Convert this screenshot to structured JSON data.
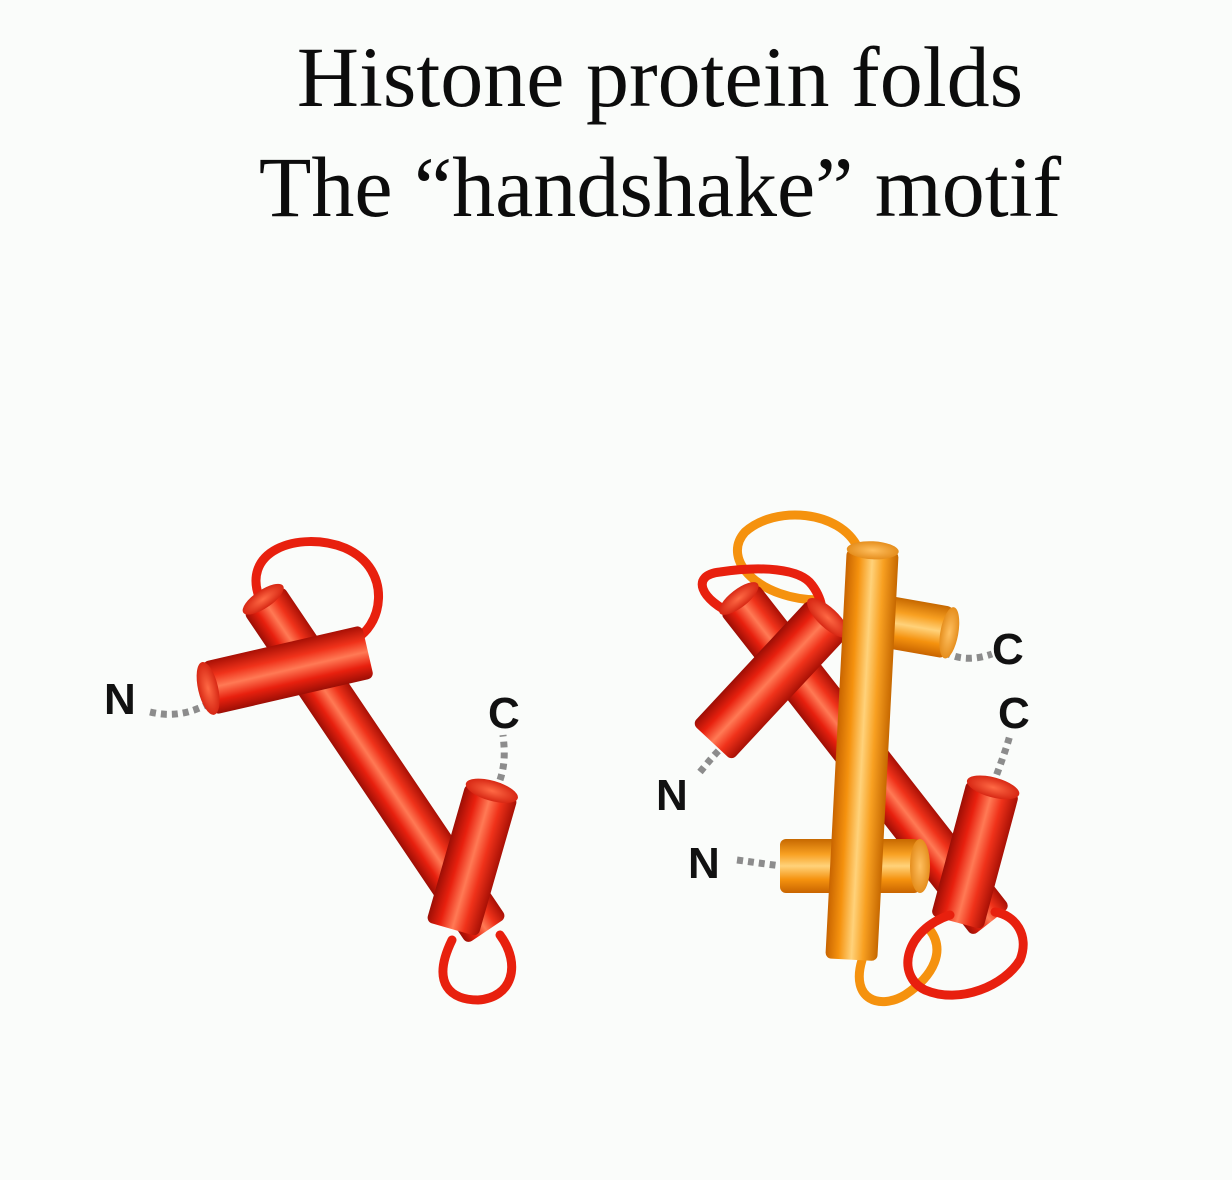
{
  "title": {
    "line1": "Histone protein folds",
    "line2": "The “handshake” motif"
  },
  "labels": {
    "monomer_n": "N",
    "monomer_c": "C",
    "dimer_c_orange": "C",
    "dimer_c_red": "C",
    "dimer_n_red": "N",
    "dimer_n_orange": "N"
  },
  "colors": {
    "red_chain": "#e8200e",
    "orange_chain": "#f5920e",
    "background": "#fafcfa",
    "tail": "#8c8c8c"
  }
}
